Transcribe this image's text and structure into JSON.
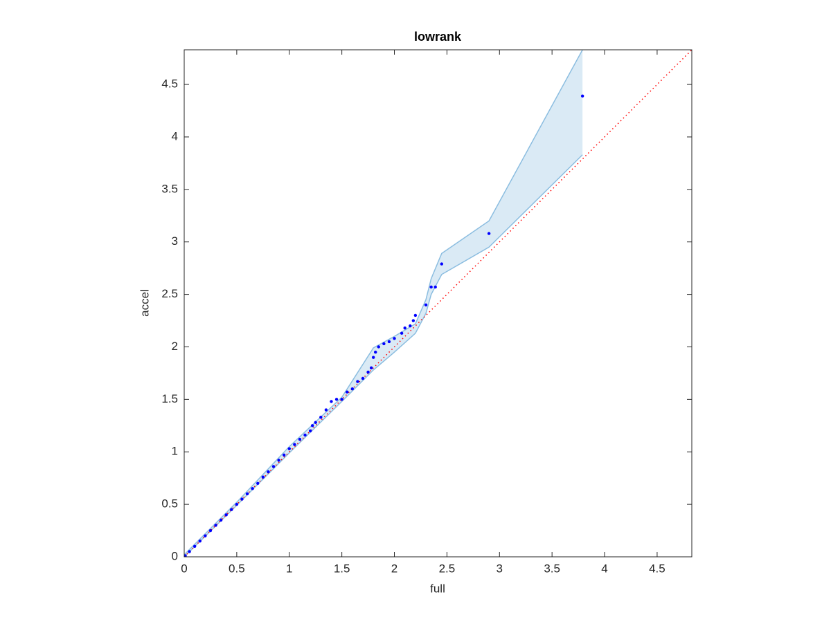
{
  "chart_data": {
    "type": "scatter",
    "title": "lowrank",
    "x_label": "full",
    "y_label": "accel",
    "xlim": [
      0,
      4.83
    ],
    "ylim": [
      0,
      4.83
    ],
    "xticks": [
      0,
      0.5,
      1,
      1.5,
      2,
      2.5,
      3,
      3.5,
      4,
      4.5
    ],
    "yticks": [
      0,
      0.5,
      1,
      1.5,
      2,
      2.5,
      3,
      3.5,
      4,
      4.5
    ],
    "points": {
      "color": "#0000ff",
      "x": [
        0.01,
        0.05,
        0.1,
        0.15,
        0.2,
        0.25,
        0.3,
        0.35,
        0.4,
        0.45,
        0.5,
        0.55,
        0.6,
        0.65,
        0.7,
        0.75,
        0.8,
        0.85,
        0.9,
        0.95,
        1.0,
        1.05,
        1.1,
        1.15,
        1.2,
        1.22,
        1.25,
        1.3,
        1.35,
        1.4,
        1.45,
        1.5,
        1.55,
        1.6,
        1.65,
        1.7,
        1.75,
        1.78,
        1.8,
        1.82,
        1.85,
        1.9,
        1.95,
        2.0,
        2.07,
        2.1,
        2.15,
        2.18,
        2.2,
        2.3,
        2.35,
        2.39,
        2.45,
        2.9,
        3.79
      ],
      "values": [
        0.01,
        0.05,
        0.1,
        0.15,
        0.2,
        0.25,
        0.3,
        0.35,
        0.4,
        0.45,
        0.5,
        0.55,
        0.6,
        0.65,
        0.7,
        0.76,
        0.81,
        0.86,
        0.92,
        0.97,
        1.03,
        1.07,
        1.12,
        1.16,
        1.2,
        1.25,
        1.28,
        1.33,
        1.4,
        1.48,
        1.5,
        1.5,
        1.57,
        1.6,
        1.67,
        1.7,
        1.76,
        1.8,
        1.9,
        1.95,
        2.0,
        2.03,
        2.05,
        2.08,
        2.13,
        2.18,
        2.2,
        2.25,
        2.3,
        2.4,
        2.57,
        2.57,
        2.79,
        3.08,
        4.39
      ]
    },
    "band": {
      "color": "#8bbde0",
      "x": [
        0,
        0.5,
        1.0,
        1.5,
        1.8,
        2.0,
        2.2,
        2.3,
        2.35,
        2.45,
        2.9,
        3.79
      ],
      "upper": [
        0.02,
        0.52,
        1.05,
        1.52,
        1.99,
        2.1,
        2.22,
        2.45,
        2.65,
        2.89,
        3.2,
        4.83
      ],
      "lower": [
        0,
        0.49,
        0.99,
        1.48,
        1.78,
        1.95,
        2.13,
        2.32,
        2.5,
        2.69,
        2.95,
        3.83
      ]
    },
    "reference_line": {
      "color": "#ff0000",
      "x": [
        0,
        4.83
      ],
      "values": [
        0,
        4.83
      ]
    }
  }
}
